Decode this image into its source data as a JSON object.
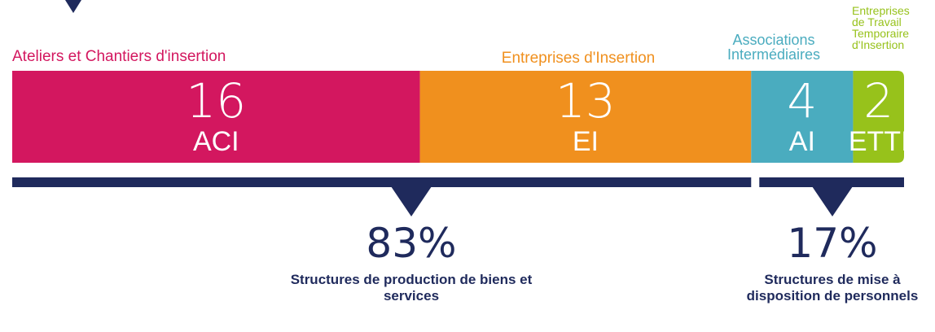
{
  "chart_data": {
    "type": "bar",
    "orientation": "horizontal",
    "stacked": true,
    "categories": [
      "Ateliers et Chantiers d'insertion",
      "Entreprises d'Insertion",
      "Associations Intermédiaires",
      "Entreprises de Travail Temporaire d'Insertion"
    ],
    "abbreviations": [
      "ACI",
      "EI",
      "AI",
      "ETTI"
    ],
    "values": [
      16,
      13,
      4,
      2
    ],
    "colors": [
      "#d3175f",
      "#f0901e",
      "#4aacbf",
      "#97c21b"
    ],
    "groups": [
      {
        "value": 83,
        "value_label": "83%",
        "text": "Structures de production de biens et services"
      },
      {
        "value": 17,
        "value_label": "17%",
        "text": "Structures de mise à disposition de personnels"
      }
    ]
  }
}
